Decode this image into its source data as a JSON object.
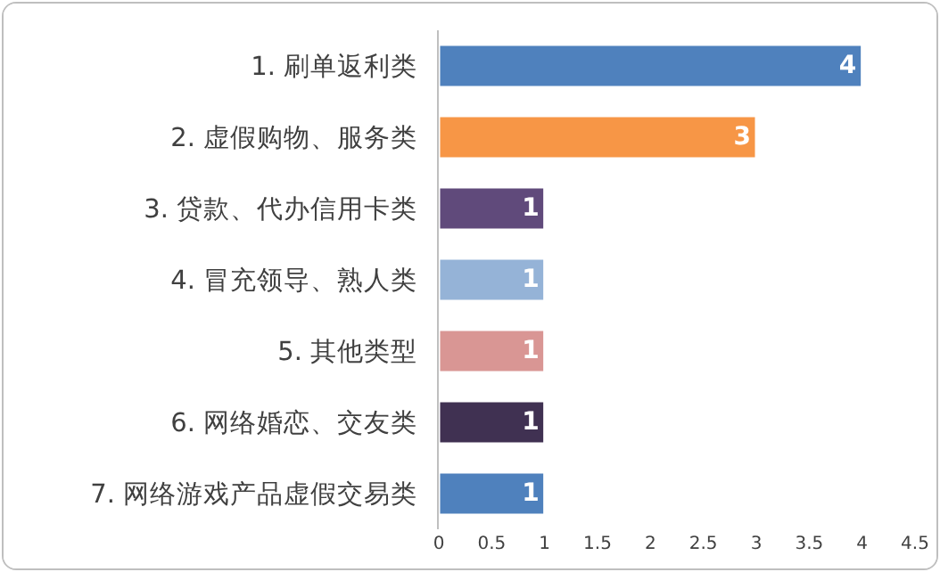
{
  "chart_data": {
    "type": "bar",
    "orientation": "horizontal",
    "categories": [
      "1. 刷单返利类",
      "2. 虚假购物、服务类",
      "3. 贷款、代办信用卡类",
      "4. 冒充领导、熟人类",
      "5. 其他类型",
      "6. 网络婚恋、交友类",
      "7. 网络游戏产品虚假交易类"
    ],
    "values": [
      4,
      3,
      1,
      1,
      1,
      1,
      1
    ],
    "colors": [
      "#4f81bd",
      "#f79646",
      "#604a7b",
      "#95b3d7",
      "#d99694",
      "#403152",
      "#4f81bd"
    ],
    "xlim": [
      0,
      4.5
    ],
    "xticks": [
      0,
      0.5,
      1,
      1.5,
      2,
      2.5,
      3,
      3.5,
      4,
      4.5
    ],
    "data_labels": true,
    "grid": false,
    "legend": false
  }
}
